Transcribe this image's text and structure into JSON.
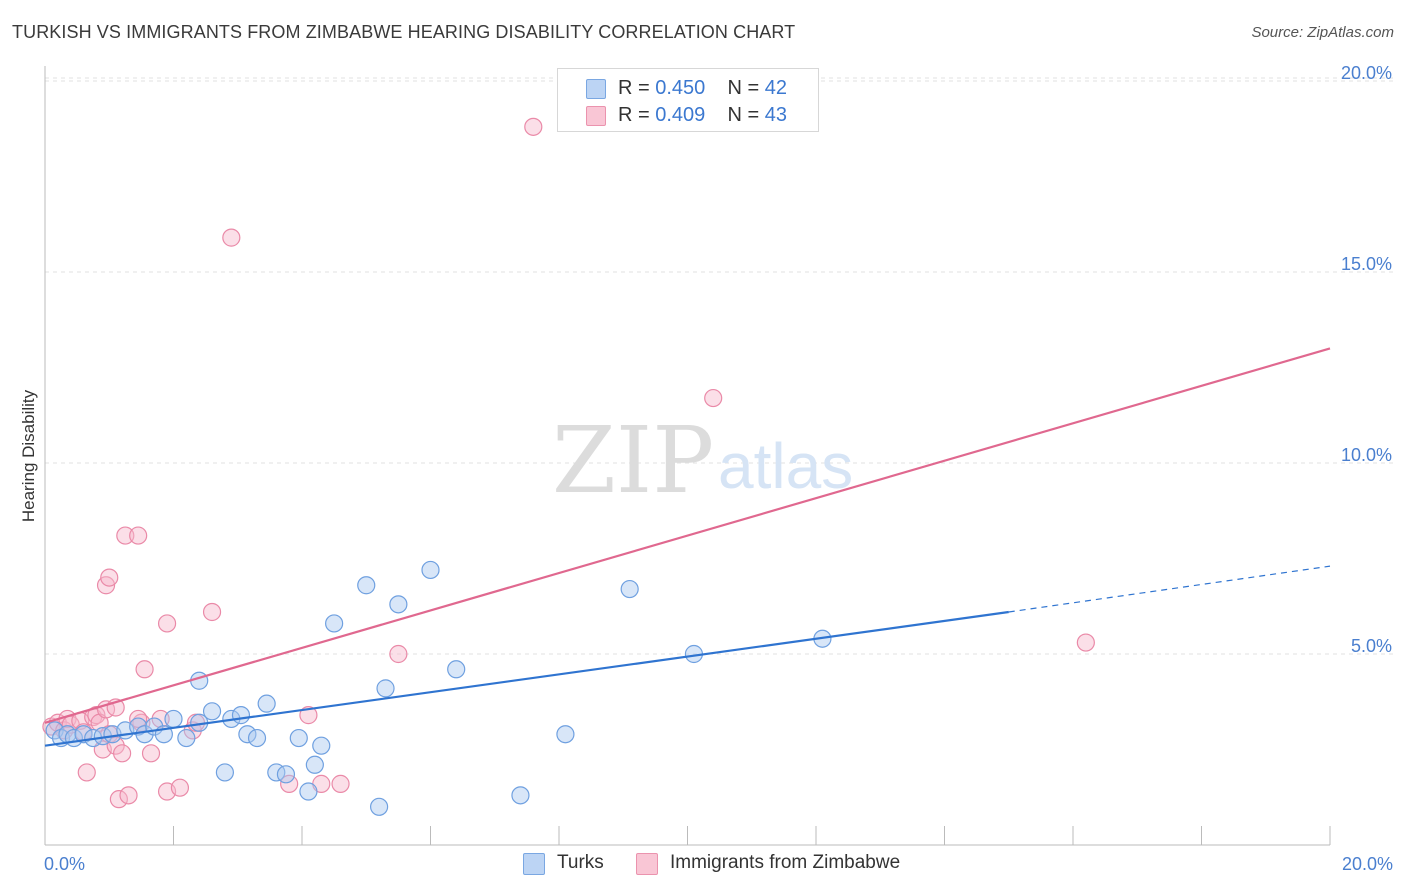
{
  "header": {
    "title": "TURKISH VS IMMIGRANTS FROM ZIMBABWE HEARING DISABILITY CORRELATION CHART",
    "source": "Source: ZipAtlas.com"
  },
  "watermark": {
    "zip": "ZIP",
    "atlas": "atlas"
  },
  "legend": {
    "turks": {
      "r_label": "R = ",
      "r_value": "0.450",
      "n_label": "N = ",
      "n_value": "42"
    },
    "zimbabwe": {
      "r_label": "R = ",
      "r_value": "0.409",
      "n_label": "N = ",
      "n_value": "43"
    }
  },
  "bottom_legend": {
    "turks": "Turks",
    "zimbabwe": "Immigrants from Zimbabwe"
  },
  "colors": {
    "turks_fill": "#a9c8f0",
    "turks_stroke": "#6fa0e0",
    "turks_line": "#2f74d0",
    "zim_fill": "#f7b8cb",
    "zim_stroke": "#ea8aa8",
    "zim_line": "#e0688f",
    "axis_text": "#4a7fcf",
    "grid": "#e2e2e2"
  },
  "chart_data": {
    "type": "scatter",
    "title": "TURKISH VS IMMIGRANTS FROM ZIMBABWE HEARING DISABILITY CORRELATION CHART",
    "xlabel": "",
    "ylabel": "Hearing Disability",
    "xlim": [
      0,
      20
    ],
    "ylim": [
      0,
      20.5
    ],
    "x_tick_labels": [
      "0.0%",
      "20.0%"
    ],
    "y_ticks": [
      5,
      10,
      15,
      20
    ],
    "y_tick_labels": [
      "5.0%",
      "10.0%",
      "15.0%",
      "20.0%"
    ],
    "grid": true,
    "series": [
      {
        "name": "Turks",
        "r": 0.45,
        "n": 42,
        "trend": {
          "x_start": 0,
          "y_start": 2.6,
          "x_solid_end": 15.0,
          "y_solid_end": 6.1,
          "x_dash_end": 20,
          "y_dash_end": 7.3
        },
        "points": [
          [
            0.15,
            3.0
          ],
          [
            0.25,
            2.8
          ],
          [
            0.35,
            2.9
          ],
          [
            0.45,
            2.8
          ],
          [
            0.6,
            2.9
          ],
          [
            0.75,
            2.8
          ],
          [
            0.9,
            2.85
          ],
          [
            1.05,
            2.9
          ],
          [
            1.25,
            3.0
          ],
          [
            1.45,
            3.1
          ],
          [
            1.55,
            2.9
          ],
          [
            1.7,
            3.1
          ],
          [
            1.85,
            2.9
          ],
          [
            2.0,
            3.3
          ],
          [
            2.2,
            2.8
          ],
          [
            2.4,
            3.2
          ],
          [
            2.4,
            4.3
          ],
          [
            2.6,
            3.5
          ],
          [
            2.8,
            1.9
          ],
          [
            2.9,
            3.3
          ],
          [
            3.05,
            3.4
          ],
          [
            3.15,
            2.9
          ],
          [
            3.3,
            2.8
          ],
          [
            3.45,
            3.7
          ],
          [
            3.6,
            1.9
          ],
          [
            3.75,
            1.85
          ],
          [
            3.95,
            2.8
          ],
          [
            4.1,
            1.4
          ],
          [
            4.2,
            2.1
          ],
          [
            4.3,
            2.6
          ],
          [
            4.5,
            5.8
          ],
          [
            5.0,
            6.8
          ],
          [
            5.2,
            1.0
          ],
          [
            5.3,
            4.1
          ],
          [
            5.5,
            6.3
          ],
          [
            6.0,
            7.2
          ],
          [
            6.4,
            4.6
          ],
          [
            7.4,
            1.3
          ],
          [
            8.1,
            2.9
          ],
          [
            9.1,
            6.7
          ],
          [
            10.1,
            5.0
          ],
          [
            12.1,
            5.4
          ]
        ]
      },
      {
        "name": "Immigrants from Zimbabwe",
        "r": 0.409,
        "n": 43,
        "trend": {
          "x_start": 0,
          "y_start": 3.2,
          "x_end": 20,
          "y_end": 13.0
        },
        "points": [
          [
            0.1,
            3.1
          ],
          [
            0.2,
            3.2
          ],
          [
            0.3,
            3.0
          ],
          [
            0.35,
            3.3
          ],
          [
            0.4,
            3.15
          ],
          [
            0.55,
            3.25
          ],
          [
            0.6,
            2.95
          ],
          [
            0.65,
            1.9
          ],
          [
            0.75,
            3.35
          ],
          [
            0.8,
            3.4
          ],
          [
            0.85,
            3.2
          ],
          [
            0.9,
            2.5
          ],
          [
            0.95,
            3.55
          ],
          [
            1.0,
            2.9
          ],
          [
            0.95,
            6.8
          ],
          [
            1.0,
            7.0
          ],
          [
            1.1,
            3.6
          ],
          [
            1.1,
            2.6
          ],
          [
            1.15,
            1.2
          ],
          [
            1.2,
            2.4
          ],
          [
            1.25,
            8.1
          ],
          [
            1.3,
            1.3
          ],
          [
            1.5,
            3.2
          ],
          [
            1.45,
            3.3
          ],
          [
            1.45,
            8.1
          ],
          [
            1.55,
            4.6
          ],
          [
            1.65,
            2.4
          ],
          [
            1.8,
            3.3
          ],
          [
            1.9,
            5.8
          ],
          [
            1.9,
            1.4
          ],
          [
            2.1,
            1.5
          ],
          [
            2.3,
            3.0
          ],
          [
            2.35,
            3.2
          ],
          [
            2.6,
            6.1
          ],
          [
            2.9,
            15.9
          ],
          [
            3.8,
            1.6
          ],
          [
            4.1,
            3.4
          ],
          [
            4.3,
            1.6
          ],
          [
            4.6,
            1.6
          ],
          [
            5.5,
            5.0
          ],
          [
            7.6,
            18.8
          ],
          [
            10.4,
            11.7
          ],
          [
            16.2,
            5.3
          ]
        ]
      }
    ]
  }
}
